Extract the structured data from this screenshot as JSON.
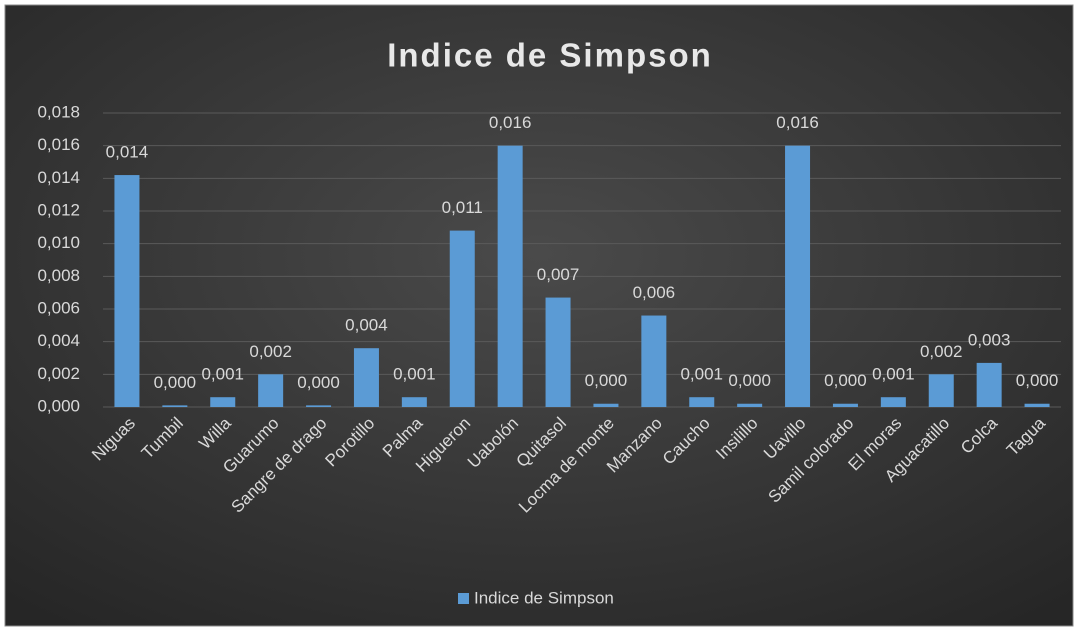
{
  "chart_data": {
    "type": "bar",
    "title": "Indice de Simpson",
    "categories": [
      "Niguas",
      "Tumbil",
      "Willa",
      "Guarumo",
      "Sangre de drago",
      "Porotillo",
      "Palma",
      "Higueron",
      "Uabolón",
      "Quitasol",
      "Locma de monte",
      "Manzano",
      "Caucho",
      "Insilillo",
      "Uavillo",
      "Samil colorado",
      "El moras",
      "Aguacatillo",
      "Colca",
      "Tagua"
    ],
    "series": [
      {
        "name": "Indice de Simpson",
        "color": "#5b9bd5",
        "values": [
          0.0142,
          0.0001,
          0.0006,
          0.002,
          0.0001,
          0.0036,
          0.0006,
          0.0108,
          0.016,
          0.0067,
          0.0002,
          0.0056,
          0.0006,
          0.0002,
          0.016,
          0.0002,
          0.0006,
          0.002,
          0.0027,
          0.0002
        ],
        "value_labels": [
          "0,014",
          "0,000",
          "0,001",
          "0,002",
          "0,000",
          "0,004",
          "0,001",
          "0,011",
          "0,016",
          "0,007",
          "0,000",
          "0,006",
          "0,001",
          "0,000",
          "0,016",
          "0,000",
          "0,001",
          "0,002",
          "0,003",
          "0,000"
        ]
      }
    ],
    "ylim": [
      0,
      0.018
    ],
    "yticks": [
      {
        "value": 0,
        "label": "0,000"
      },
      {
        "value": 0.002,
        "label": "0,002"
      },
      {
        "value": 0.004,
        "label": "0,004"
      },
      {
        "value": 0.006,
        "label": "0,006"
      },
      {
        "value": 0.008,
        "label": "0,008"
      },
      {
        "value": 0.01,
        "label": "0,010"
      },
      {
        "value": 0.012,
        "label": "0,012"
      },
      {
        "value": 0.014,
        "label": "0,014"
      },
      {
        "value": 0.016,
        "label": "0,016"
      },
      {
        "value": 0.018,
        "label": "0,018"
      }
    ],
    "grid": true,
    "legend": "bottom"
  }
}
